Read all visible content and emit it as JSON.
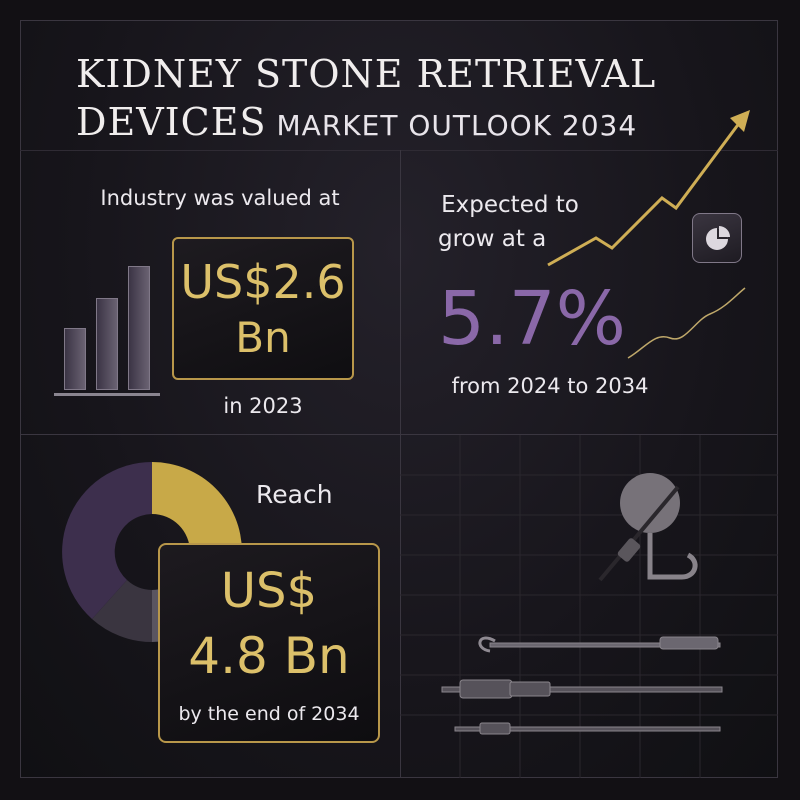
{
  "title": {
    "line1": "KIDNEY STONE RETRIEVAL",
    "line2_main": "DEVICES",
    "line2_sub": "MARKET OUTLOOK 2034"
  },
  "valuation": {
    "label": "Industry was valued at",
    "value_line1": "US$2.6",
    "value_line2": "Bn",
    "year": "in 2023",
    "icon": "bar-chart-icon"
  },
  "growth": {
    "label_line1": "Expected to",
    "label_line2": "grow at a",
    "rate": "5.7%",
    "period": "from 2024 to 2034",
    "icon": "pie-chart-icon"
  },
  "forecast": {
    "label": "Reach",
    "value_line1": "US$",
    "value_line2": "4.8 Bn",
    "year": "by the end of 2034",
    "icon": "donut-chart-icon"
  },
  "colors": {
    "gold": "#dcc06a",
    "purple": "#8a68a8",
    "background": "#121014"
  }
}
